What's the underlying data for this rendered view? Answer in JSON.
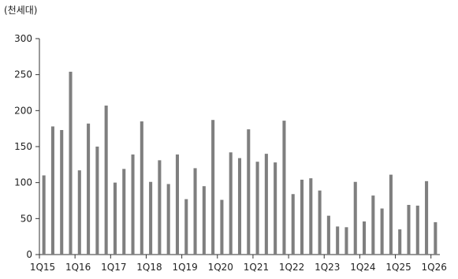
{
  "unit_label": "(천세대)",
  "chart_data": {
    "type": "bar",
    "ylabel": "",
    "xlabel": "",
    "ylim": [
      0,
      300
    ],
    "yticks": [
      0,
      50,
      100,
      150,
      200,
      250,
      300
    ],
    "grid": false,
    "bar_color": "#7f7f7f",
    "categories": [
      "1Q15",
      "2Q15",
      "3Q15",
      "4Q15",
      "1Q16",
      "2Q16",
      "3Q16",
      "4Q16",
      "1Q17",
      "2Q17",
      "3Q17",
      "4Q17",
      "1Q18",
      "2Q18",
      "3Q18",
      "4Q18",
      "1Q19",
      "2Q19",
      "3Q19",
      "4Q19",
      "1Q20",
      "2Q20",
      "3Q20",
      "4Q20",
      "1Q21",
      "2Q21",
      "3Q21",
      "4Q21",
      "1Q22",
      "2Q22",
      "3Q22",
      "4Q22",
      "1Q23",
      "2Q23",
      "3Q23",
      "4Q23",
      "1Q24",
      "2Q24",
      "3Q24",
      "4Q24",
      "1Q25",
      "2Q25",
      "3Q25",
      "4Q25",
      "1Q26"
    ],
    "tick_labels": [
      "1Q15",
      "1Q16",
      "1Q17",
      "1Q18",
      "1Q19",
      "1Q20",
      "1Q21",
      "1Q22",
      "1Q23",
      "1Q24",
      "1Q25",
      "1Q26"
    ],
    "values": [
      110,
      178,
      173,
      254,
      117,
      182,
      150,
      207,
      100,
      119,
      139,
      185,
      101,
      131,
      98,
      139,
      77,
      120,
      95,
      187,
      76,
      142,
      134,
      174,
      129,
      140,
      128,
      186,
      84,
      104,
      106,
      89,
      54,
      39,
      38,
      101,
      46,
      82,
      64,
      111,
      35,
      69,
      68,
      102,
      45
    ]
  }
}
